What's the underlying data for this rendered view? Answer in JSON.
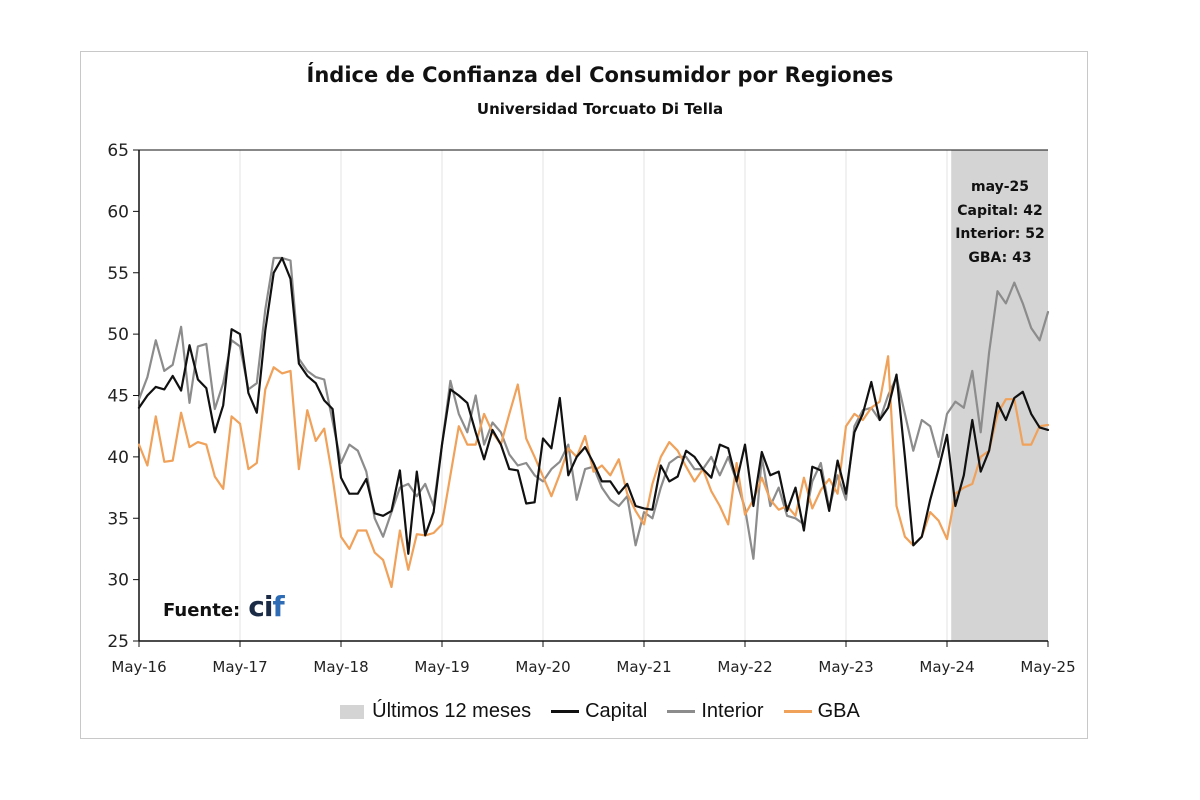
{
  "chart_data": {
    "type": "line",
    "title": "Índice de Confianza del Consumidor por Regiones",
    "subtitle": "Universidad Torcuato Di Tella",
    "ylim": [
      25,
      65
    ],
    "yticks": [
      25,
      30,
      35,
      40,
      45,
      50,
      55,
      60,
      65
    ],
    "xlim": [
      0,
      108
    ],
    "xticks": [
      {
        "label": "May-16",
        "index": 0
      },
      {
        "label": "May-17",
        "index": 12
      },
      {
        "label": "May-18",
        "index": 24
      },
      {
        "label": "May-19",
        "index": 36
      },
      {
        "label": "May-20",
        "index": 48
      },
      {
        "label": "May-21",
        "index": 60
      },
      {
        "label": "May-22",
        "index": 72
      },
      {
        "label": "May-23",
        "index": 84
      },
      {
        "label": "May-24",
        "index": 96
      },
      {
        "label": "May-25",
        "index": 108
      }
    ],
    "shaded_region": {
      "label": "Últimos 12 meses",
      "from": 96.5,
      "to": 108,
      "color": "#d4d4d4"
    },
    "series": [
      {
        "name": "Capital",
        "color": "#111111",
        "values": [
          44.0,
          45.0,
          45.7,
          45.5,
          46.6,
          45.4,
          49.1,
          46.3,
          45.6,
          42.0,
          44.2,
          50.4,
          50.0,
          45.2,
          43.6,
          50.3,
          55.0,
          56.2,
          54.5,
          47.6,
          46.6,
          46.0,
          44.6,
          43.9,
          38.3,
          37.0,
          37.0,
          38.2,
          35.4,
          35.2,
          35.6,
          38.9,
          32.1,
          38.8,
          33.6,
          35.5,
          41.0,
          45.5,
          45.0,
          44.4,
          42.0,
          39.8,
          42.2,
          41.0,
          39.0,
          38.9,
          36.2,
          36.3,
          41.5,
          40.7,
          44.8,
          38.5,
          40.0,
          40.8,
          39.5,
          38.0,
          38.0,
          37.0,
          37.8,
          36.0,
          35.8,
          35.7,
          39.3,
          38.0,
          38.4,
          40.5,
          40.0,
          39.0,
          38.3,
          41.0,
          40.7,
          38.0,
          41.0,
          36.0,
          40.4,
          38.5,
          38.8,
          35.6,
          37.5,
          34.0,
          39.2,
          38.9,
          35.6,
          39.7,
          37.0,
          42.0,
          43.5,
          46.1,
          43.0,
          44.0,
          46.7,
          40.0,
          32.8,
          33.5,
          36.5,
          39.0,
          41.8,
          36.0,
          38.5,
          43.0,
          38.8,
          40.5,
          44.4,
          43.0,
          44.8,
          45.3,
          43.5,
          42.4,
          42.2
        ]
      },
      {
        "name": "Interior",
        "color": "#8c8c8c",
        "values": [
          44.7,
          46.5,
          49.5,
          47.0,
          47.5,
          50.6,
          44.4,
          49.0,
          49.2,
          43.9,
          46.0,
          49.5,
          49.0,
          45.5,
          46.0,
          52.0,
          56.2,
          56.2,
          56.0,
          48.0,
          47.0,
          46.5,
          46.3,
          42.9,
          39.5,
          41.0,
          40.5,
          38.8,
          35.0,
          33.5,
          35.5,
          37.5,
          37.8,
          36.8,
          37.8,
          36.0,
          41.0,
          46.2,
          43.5,
          42.0,
          45.0,
          41.0,
          42.8,
          42.0,
          40.2,
          39.3,
          39.5,
          38.5,
          38.0,
          39.0,
          39.6,
          41.0,
          36.5,
          39.0,
          39.2,
          37.5,
          36.5,
          36.0,
          36.8,
          32.8,
          35.5,
          35.0,
          37.5,
          39.5,
          40.0,
          40.0,
          39.0,
          39.0,
          40.0,
          38.5,
          40.0,
          38.0,
          35.8,
          31.7,
          40.0,
          36.0,
          37.5,
          35.2,
          35.0,
          34.5,
          38.0,
          39.5,
          35.8,
          38.5,
          36.5,
          42.5,
          43.8,
          44.0,
          43.0,
          45.0,
          46.5,
          43.5,
          40.5,
          43.0,
          42.5,
          40.0,
          43.5,
          44.5,
          44.0,
          47.0,
          42.0,
          48.5,
          53.5,
          52.5,
          54.2,
          52.5,
          50.5,
          49.5,
          51.8
        ]
      },
      {
        "name": "GBA",
        "color": "#f0a15a",
        "values": [
          41.0,
          39.3,
          43.3,
          39.6,
          39.7,
          43.6,
          40.8,
          41.2,
          41.0,
          38.4,
          37.4,
          43.3,
          42.7,
          39.0,
          39.5,
          45.5,
          47.3,
          46.8,
          47.0,
          39.0,
          43.8,
          41.3,
          42.3,
          38.3,
          33.5,
          32.5,
          34.0,
          34.0,
          32.2,
          31.6,
          29.4,
          34.0,
          30.8,
          33.7,
          33.6,
          33.8,
          34.5,
          38.5,
          42.5,
          41.0,
          41.0,
          43.5,
          42.0,
          41.0,
          43.5,
          45.9,
          41.5,
          40.0,
          38.4,
          36.8,
          38.6,
          40.7,
          40.0,
          41.7,
          38.8,
          39.3,
          38.5,
          39.8,
          37.0,
          35.6,
          34.5,
          37.8,
          40.0,
          41.2,
          40.5,
          39.2,
          38.0,
          39.0,
          37.2,
          36.0,
          34.5,
          39.5,
          35.3,
          36.5,
          38.3,
          36.5,
          35.7,
          36.0,
          35.2,
          38.3,
          35.8,
          37.3,
          38.2,
          37.0,
          42.5,
          43.5,
          43.0,
          44.0,
          44.5,
          48.2,
          36.0,
          33.5,
          32.8,
          33.5,
          35.5,
          34.8,
          33.3,
          37.0,
          37.5,
          37.8,
          40.0,
          40.5,
          43.5,
          44.7,
          44.7,
          41.0,
          41.0,
          42.5,
          42.6
        ]
      }
    ],
    "annotation": {
      "lines": [
        "may-25",
        "Capital: 42",
        "Interior: 52",
        "GBA: 43"
      ]
    },
    "source": {
      "prefix": "Fuente:",
      "brand_a": "ci",
      "brand_b": "f"
    }
  }
}
